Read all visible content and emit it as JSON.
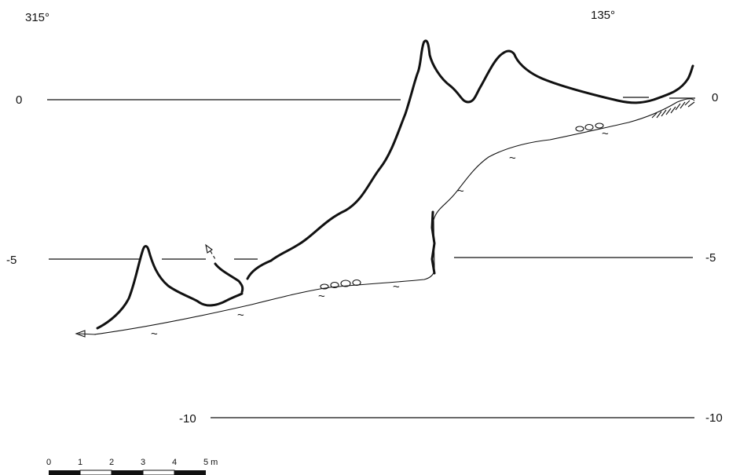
{
  "bearings": {
    "left": "315°",
    "right": "135°"
  },
  "depth_labels": {
    "left": [
      "0",
      "-5",
      "-10"
    ],
    "right": [
      "0",
      "-5",
      "-10"
    ]
  },
  "scale_bar": {
    "ticks": [
      "0",
      "1",
      "2",
      "3",
      "4",
      "5 m"
    ]
  },
  "colors": {
    "ink": "#111111",
    "paper": "#ffffff"
  }
}
